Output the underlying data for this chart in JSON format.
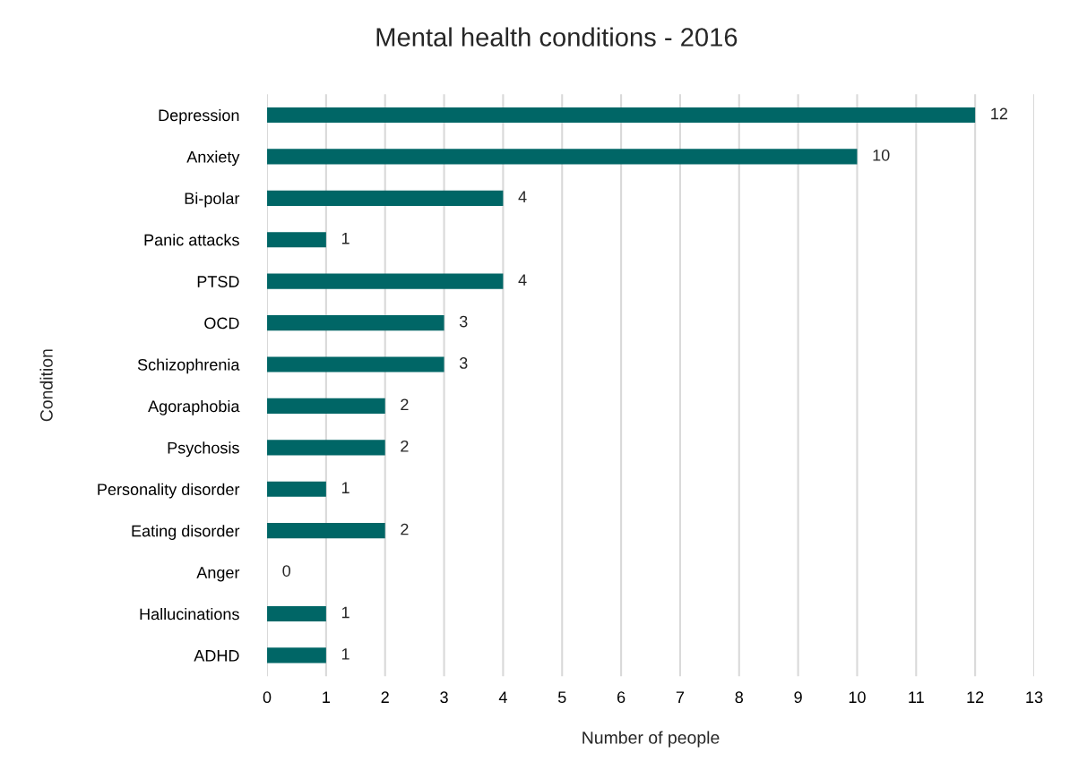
{
  "chart_data": {
    "type": "bar",
    "orientation": "horizontal",
    "title": "Mental health conditions - 2016",
    "xlabel": "Number of people",
    "ylabel": "Condition",
    "categories": [
      "Depression",
      "Anxiety",
      "Bi-polar",
      "Panic attacks",
      "PTSD",
      "OCD",
      "Schizophrenia",
      "Agoraphobia",
      "Psychosis",
      "Personality disorder",
      "Eating disorder",
      "Anger",
      "Hallucinations",
      "ADHD"
    ],
    "values": [
      12,
      10,
      4,
      1,
      4,
      3,
      3,
      2,
      2,
      1,
      2,
      0,
      1,
      1
    ],
    "color": "#006666",
    "xlim": [
      0,
      13
    ],
    "xticks": [
      0,
      1,
      2,
      3,
      4,
      5,
      6,
      7,
      8,
      9,
      10,
      11,
      12,
      13
    ],
    "grid": "x",
    "data_labels": true
  }
}
